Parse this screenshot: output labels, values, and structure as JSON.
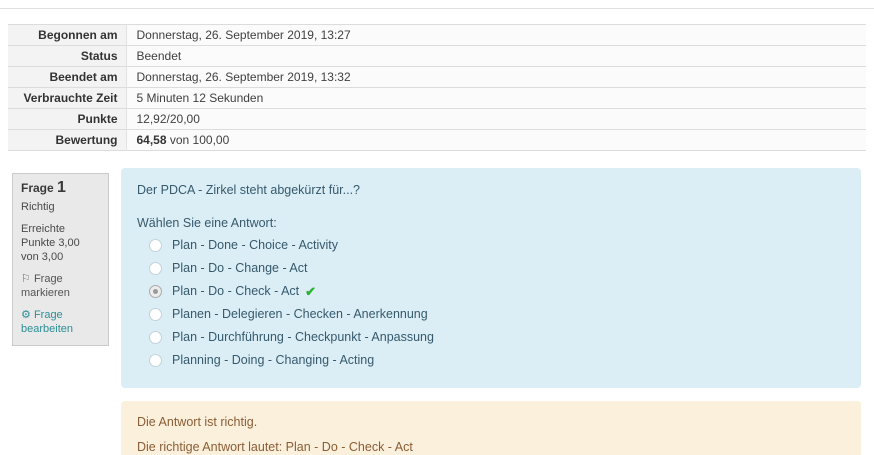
{
  "summary": {
    "rows": [
      {
        "label": "Begonnen am",
        "value": "Donnerstag, 26. September 2019, 13:27"
      },
      {
        "label": "Status",
        "value": "Beendet"
      },
      {
        "label": "Beendet am",
        "value": "Donnerstag, 26. September 2019, 13:32"
      },
      {
        "label": "Verbrauchte Zeit",
        "value": "5 Minuten 12 Sekunden"
      },
      {
        "label": "Punkte",
        "value": "12,92/20,00"
      }
    ],
    "grade_row": {
      "label": "Bewertung",
      "value_bold": "64,58",
      "value_rest": " von 100,00"
    }
  },
  "question_info": {
    "label": "Frage",
    "number": "1",
    "state": "Richtig",
    "points_label": "Erreichte Punkte",
    "points_value": "3,00 von 3,00",
    "flag_label": "Frage markieren",
    "edit_label": "Frage bearbeiten"
  },
  "question": {
    "text": "Der PDCA - Zirkel steht abgekürzt für...?",
    "prompt": "Wählen Sie eine Antwort:",
    "options": [
      "Plan - Done - Choice - Activity",
      "Plan - Do - Change - Act",
      "Plan - Do - Check - Act",
      "Planen - Delegieren - Checken - Anerkennung",
      "Plan - Durchführung - Checkpunkt - Anpassung",
      "Planning - Doing - Changing - Acting"
    ],
    "selected_option_index": 2
  },
  "feedback": {
    "line1": "Die Antwort ist richtig.",
    "line2": "Die richtige Antwort lautet: Plan - Do - Check - Act"
  },
  "icons": {
    "flag": "⚐",
    "gear": "⚙",
    "check": "✔"
  },
  "colors": {
    "question_bg": "#dbeef6",
    "question_text": "#36596c",
    "feedback_bg": "#fbf0dc",
    "feedback_text": "#8a5d35",
    "link_teal": "#2b8e96",
    "correct_green": "#2eb135",
    "table_label_bg": "#f3f3f3",
    "info_box_bg": "#e9e9e9"
  }
}
